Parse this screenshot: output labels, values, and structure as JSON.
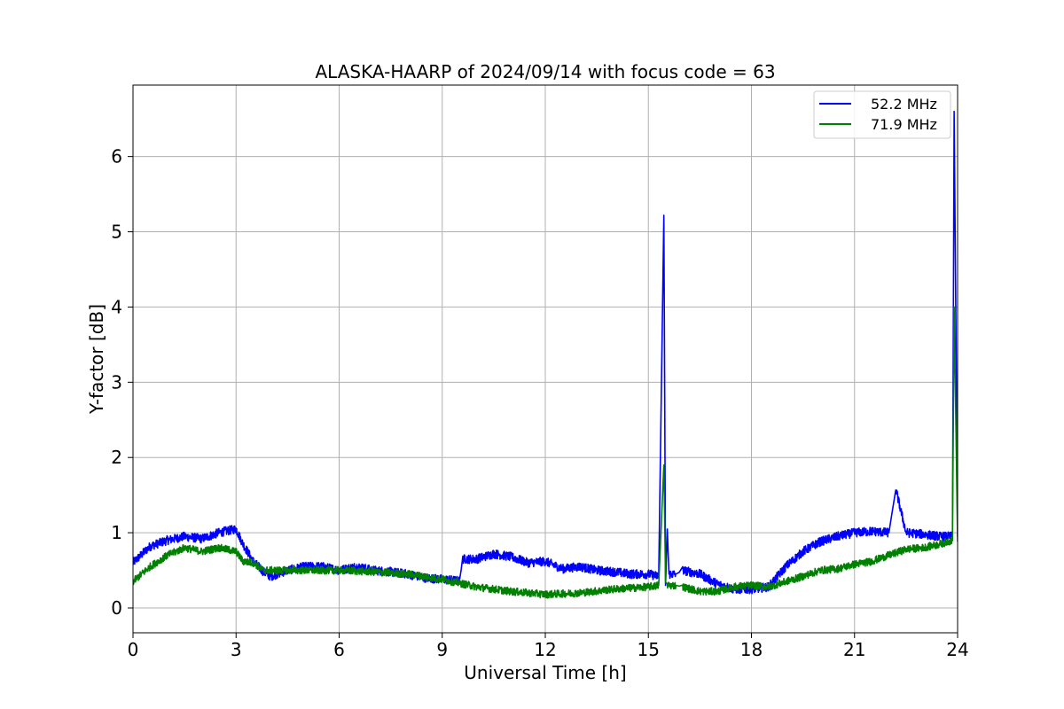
{
  "chart_data": {
    "type": "line",
    "title": "ALASKA-HAARP of 2024/09/14 with focus code = 63",
    "xlabel": "Universal Time [h]",
    "ylabel": "Y-factor [dB]",
    "xlim": [
      0,
      24
    ],
    "ylim": [
      -0.33,
      6.95
    ],
    "xticks": [
      0,
      3,
      6,
      9,
      12,
      15,
      18,
      21,
      24
    ],
    "xtick_labels": [
      "0",
      "3",
      "6",
      "9",
      "12",
      "15",
      "18",
      "21",
      "24"
    ],
    "yticks": [
      0,
      1,
      2,
      3,
      4,
      5,
      6
    ],
    "ytick_labels": [
      "0",
      "1",
      "2",
      "3",
      "4",
      "5",
      "6"
    ],
    "grid": true,
    "legend_position": "top-right",
    "series": [
      {
        "name": "52.2 MHz",
        "color": "#0000ff",
        "x": [
          0,
          0.5,
          1,
          1.5,
          2,
          2.5,
          3,
          3.2,
          3.5,
          3.8,
          4,
          4.5,
          5,
          5.5,
          6,
          6.5,
          7,
          7.5,
          8,
          8.5,
          9,
          9.5,
          9.6,
          10,
          10.5,
          11,
          11.5,
          12,
          12.5,
          13,
          13.5,
          14,
          14.5,
          15,
          15.3,
          15.45,
          15.5,
          15.55,
          15.6,
          15.8,
          16,
          16.5,
          17,
          17.5,
          18,
          18.5,
          19,
          19.5,
          20,
          20.5,
          21,
          21.5,
          22,
          22.2,
          22.5,
          23,
          23.5,
          23.85,
          23.9,
          24
        ],
        "y": [
          0.6,
          0.82,
          0.9,
          0.95,
          0.92,
          1.0,
          1.05,
          0.85,
          0.62,
          0.48,
          0.42,
          0.5,
          0.55,
          0.55,
          0.5,
          0.55,
          0.5,
          0.48,
          0.45,
          0.4,
          0.38,
          0.36,
          0.65,
          0.65,
          0.72,
          0.68,
          0.6,
          0.62,
          0.52,
          0.55,
          0.5,
          0.48,
          0.45,
          0.45,
          0.42,
          5.22,
          0.3,
          1.05,
          0.45,
          0.45,
          0.5,
          0.45,
          0.32,
          0.25,
          0.25,
          0.28,
          0.55,
          0.75,
          0.88,
          0.95,
          1.0,
          1.02,
          1.0,
          1.58,
          1.0,
          0.98,
          0.95,
          0.95,
          6.6,
          0.95
        ],
        "noise": 0.06
      },
      {
        "name": "71.9 MHz",
        "color": "#008000",
        "x": [
          0,
          0.5,
          1,
          1.5,
          2,
          2.5,
          3,
          3.2,
          3.5,
          3.8,
          4,
          5,
          6,
          7,
          8,
          9,
          10,
          11,
          12,
          13,
          14,
          15,
          15.3,
          15.45,
          15.5,
          15.55,
          15.8,
          16,
          16.5,
          17,
          17.5,
          18,
          18.5,
          19,
          19.5,
          20,
          20.5,
          21,
          21.5,
          22,
          22.5,
          23,
          23.5,
          23.85,
          23.9,
          24
        ],
        "y": [
          0.35,
          0.55,
          0.7,
          0.8,
          0.75,
          0.8,
          0.75,
          0.62,
          0.6,
          0.5,
          0.5,
          0.5,
          0.5,
          0.48,
          0.45,
          0.38,
          0.28,
          0.22,
          0.18,
          0.2,
          0.25,
          0.28,
          0.3,
          1.9,
          0.35,
          0.3,
          0.3,
          0.28,
          0.22,
          0.22,
          0.28,
          0.3,
          0.28,
          0.35,
          0.42,
          0.5,
          0.52,
          0.58,
          0.62,
          0.7,
          0.78,
          0.8,
          0.85,
          0.9,
          4.0,
          0.88
        ],
        "noise": 0.05
      }
    ]
  }
}
